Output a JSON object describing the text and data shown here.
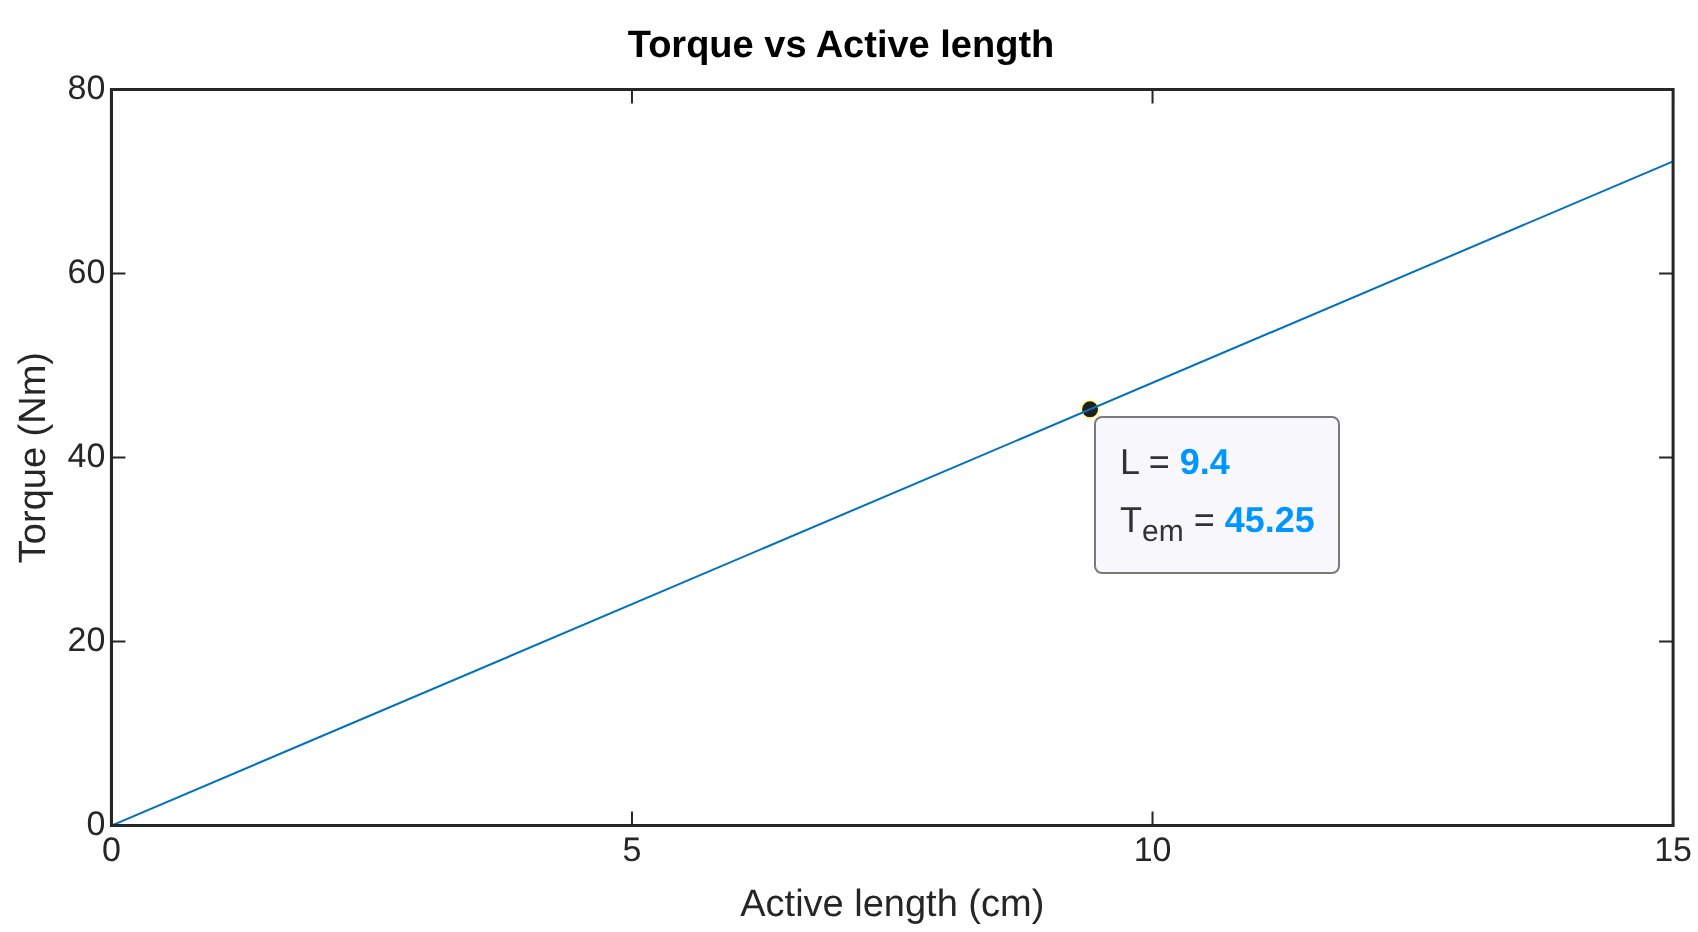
{
  "chart_data": {
    "type": "line",
    "title": "Torque vs Active length",
    "xlabel": "Active length (cm)",
    "ylabel": "Torque (Nm)",
    "x": [
      0,
      15
    ],
    "series": [
      {
        "color": "#0072bd",
        "values": [
          0,
          72.2
        ]
      },
      {
        "type": "scatter",
        "x": [
          9.4
        ],
        "color": "#202020",
        "marker": "circle",
        "values": [
          45.25
        ]
      }
    ],
    "xlim": [
      0,
      15
    ],
    "xticks": [
      0,
      5,
      10,
      15
    ],
    "ylim": [
      0,
      80
    ],
    "yticks": [
      0,
      20,
      40,
      60,
      80
    ],
    "grid": false,
    "legend": false,
    "marker": "none",
    "line_style": "solid",
    "annotations": [
      {
        "text": "L = 9.4\nT$_{em}$ = 45.25",
        "x": 9.4,
        "y": 45.25
      }
    ]
  }
}
